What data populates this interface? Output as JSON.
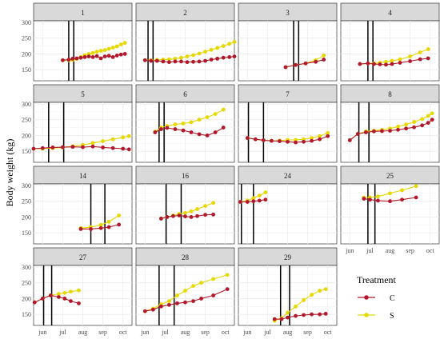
{
  "chart_data": {
    "type": "line",
    "ylabel": "Body weight (kg)",
    "xlabel": "",
    "x_tick_labels": [
      "jun",
      "jul",
      "aug",
      "sep",
      "oct"
    ],
    "x_tick_months": [
      6,
      7,
      8,
      9,
      10
    ],
    "xlim_months": [
      5.55,
      10.45
    ],
    "y_ticks": [
      150,
      200,
      250,
      300
    ],
    "ylim": [
      115,
      305
    ],
    "grid": true,
    "legend": {
      "title": "Treatment",
      "position": "bottom-right",
      "entries": [
        {
          "label": "C",
          "color": "#b2182b"
        },
        {
          "label": "S",
          "color": "#e6d800"
        }
      ]
    },
    "panels": [
      {
        "label": "1",
        "vlines": [
          7.3,
          7.55
        ],
        "C": {
          "x": [
            7.0,
            7.3,
            7.5,
            7.7,
            7.9,
            8.1,
            8.3,
            8.5,
            8.7,
            8.9,
            9.1,
            9.3,
            9.5,
            9.7,
            9.9,
            10.1
          ],
          "y": [
            180,
            182,
            185,
            186,
            188,
            190,
            192,
            190,
            193,
            186,
            192,
            194,
            190,
            195,
            198,
            200
          ]
        },
        "S": {
          "x": [
            7.0,
            7.3,
            7.5,
            7.7,
            7.9,
            8.1,
            8.3,
            8.5,
            8.7,
            8.9,
            9.1,
            9.3,
            9.5,
            9.7,
            9.9,
            10.1
          ],
          "y": [
            180,
            180,
            181,
            184,
            190,
            196,
            200,
            203,
            207,
            210,
            212,
            216,
            220,
            224,
            230,
            235
          ]
        }
      },
      {
        "label": "2",
        "vlines": [
          6.15,
          6.4
        ],
        "C": {
          "x": [
            6.0,
            6.3,
            6.6,
            6.9,
            7.2,
            7.5,
            7.8,
            8.1,
            8.4,
            8.7,
            9.0,
            9.3,
            9.6,
            9.9,
            10.2,
            10.45
          ],
          "y": [
            180,
            178,
            178,
            176,
            174,
            176,
            176,
            174,
            175,
            176,
            178,
            182,
            185,
            188,
            190,
            192
          ]
        },
        "S": {
          "x": [
            6.0,
            6.3,
            6.6,
            6.9,
            7.2,
            7.5,
            7.8,
            8.1,
            8.4,
            8.7,
            9.0,
            9.3,
            9.6,
            9.9,
            10.2,
            10.45
          ],
          "y": [
            180,
            180,
            181,
            182,
            183,
            185,
            188,
            192,
            196,
            201,
            207,
            213,
            219,
            225,
            232,
            238
          ]
        }
      },
      {
        "label": "3",
        "vlines": [
          8.3,
          8.55
        ],
        "C": {
          "x": [
            7.9,
            8.4,
            8.9,
            9.4,
            9.8
          ],
          "y": [
            158,
            165,
            170,
            175,
            182
          ]
        },
        "S": {
          "x": [
            7.9,
            8.4,
            8.9,
            9.4,
            9.8
          ],
          "y": [
            158,
            165,
            170,
            180,
            195
          ]
        }
      },
      {
        "label": "4",
        "vlines": [
          6.9,
          7.15
        ],
        "C": {
          "x": [
            6.5,
            6.9,
            7.2,
            7.5,
            7.8,
            8.1,
            8.5,
            9.0,
            9.5,
            9.9
          ],
          "y": [
            168,
            170,
            168,
            167,
            166,
            168,
            172,
            177,
            183,
            186
          ]
        },
        "S": {
          "x": [
            6.5,
            6.9,
            7.2,
            7.5,
            7.8,
            8.1,
            8.5,
            9.0,
            9.5,
            9.9
          ],
          "y": [
            168,
            170,
            170,
            172,
            175,
            178,
            183,
            192,
            205,
            215
          ]
        }
      },
      {
        "label": "5",
        "vlines": [
          6.3,
          7.05
        ],
        "C": {
          "x": [
            5.55,
            6.0,
            6.5,
            7.0,
            7.5,
            8.0,
            8.5,
            9.0,
            9.5,
            10.0,
            10.3
          ],
          "y": [
            158,
            160,
            162,
            163,
            164,
            163,
            165,
            162,
            160,
            158,
            156
          ]
        },
        "S": {
          "x": [
            5.55,
            6.0,
            6.5,
            7.0,
            7.5,
            8.0,
            8.5,
            9.0,
            9.5,
            10.0,
            10.3
          ],
          "y": [
            158,
            158,
            160,
            162,
            166,
            170,
            176,
            182,
            188,
            194,
            198
          ]
        }
      },
      {
        "label": "6",
        "vlines": [
          6.7,
          6.95
        ],
        "C": {
          "x": [
            6.5,
            6.8,
            7.1,
            7.5,
            7.9,
            8.3,
            8.7,
            9.1,
            9.5,
            9.9
          ],
          "y": [
            210,
            220,
            224,
            220,
            216,
            210,
            204,
            200,
            210,
            225
          ]
        },
        "S": {
          "x": [
            6.5,
            6.8,
            7.1,
            7.5,
            7.9,
            8.3,
            8.7,
            9.1,
            9.5,
            9.9
          ],
          "y": [
            212,
            225,
            230,
            235,
            238,
            242,
            250,
            258,
            268,
            282
          ]
        }
      },
      {
        "label": "7",
        "vlines": [
          6.05,
          6.8
        ],
        "C": {
          "x": [
            6.0,
            6.4,
            6.8,
            7.2,
            7.6,
            8.0,
            8.4,
            8.8,
            9.2,
            9.6,
            10.0
          ],
          "y": [
            192,
            188,
            185,
            183,
            182,
            180,
            178,
            180,
            183,
            188,
            198
          ]
        },
        "S": {
          "x": [
            6.0,
            6.4,
            6.8,
            7.2,
            7.6,
            8.0,
            8.4,
            8.8,
            9.2,
            9.6,
            10.0
          ],
          "y": [
            192,
            188,
            185,
            183,
            184,
            186,
            186,
            188,
            192,
            198,
            208
          ]
        }
      },
      {
        "label": "8",
        "vlines": [
          6.45,
          6.95
        ],
        "C": {
          "x": [
            6.0,
            6.4,
            6.8,
            7.2,
            7.6,
            8.0,
            8.4,
            8.8,
            9.2,
            9.6,
            9.9,
            10.1
          ],
          "y": [
            185,
            205,
            210,
            213,
            214,
            215,
            218,
            222,
            226,
            232,
            240,
            250
          ]
        },
        "S": {
          "x": [
            6.0,
            6.4,
            6.8,
            7.2,
            7.6,
            8.0,
            8.4,
            8.8,
            9.2,
            9.6,
            9.9,
            10.1
          ],
          "y": [
            185,
            205,
            213,
            215,
            218,
            222,
            228,
            235,
            243,
            252,
            262,
            270
          ]
        }
      },
      {
        "label": "14",
        "vlines": [
          8.4,
          9.1
        ],
        "C": {
          "x": [
            7.9,
            8.4,
            8.9,
            9.3,
            9.8
          ],
          "y": [
            162,
            162,
            165,
            168,
            176
          ]
        },
        "S": {
          "x": [
            7.9,
            8.4,
            8.9,
            9.3,
            9.8
          ],
          "y": [
            165,
            168,
            175,
            185,
            205
          ]
        }
      },
      {
        "label": "16",
        "vlines": [
          7.05,
          7.8
        ],
        "C": {
          "x": [
            6.8,
            7.1,
            7.4,
            7.7,
            8.0,
            8.3,
            8.6,
            9.0,
            9.4
          ],
          "y": [
            195,
            200,
            203,
            205,
            202,
            200,
            203,
            207,
            208
          ]
        },
        "S": {
          "x": [
            6.8,
            7.1,
            7.4,
            7.7,
            8.0,
            8.3,
            8.6,
            9.0,
            9.4
          ],
          "y": [
            195,
            200,
            205,
            210,
            213,
            218,
            225,
            235,
            245
          ]
        }
      },
      {
        "label": "24",
        "vlines": [
          5.7,
          6.3
        ],
        "C": {
          "x": [
            5.65,
            6.0,
            6.3,
            6.6,
            6.9
          ],
          "y": [
            248,
            248,
            250,
            252,
            255
          ]
        },
        "S": {
          "x": [
            5.65,
            6.0,
            6.3,
            6.6,
            6.9
          ],
          "y": [
            248,
            252,
            260,
            268,
            278
          ]
        }
      },
      {
        "label": "25",
        "vlines": [
          6.9,
          7.25
        ],
        "C": {
          "x": [
            6.7,
            7.0,
            7.4,
            8.0,
            8.6,
            9.3
          ],
          "y": [
            258,
            255,
            252,
            250,
            255,
            262
          ]
        },
        "S": {
          "x": [
            6.7,
            7.0,
            7.4,
            8.0,
            8.6,
            9.3
          ],
          "y": [
            262,
            262,
            265,
            275,
            285,
            298
          ]
        }
      },
      {
        "label": "27",
        "vlines": [
          6.05,
          6.45
        ],
        "C": {
          "x": [
            5.6,
            6.0,
            6.4,
            6.8,
            7.1,
            7.4,
            7.8
          ],
          "y": [
            188,
            200,
            210,
            205,
            200,
            192,
            185
          ]
        },
        "S": {
          "x": [
            5.6,
            6.0,
            6.4,
            6.8,
            7.1,
            7.4,
            7.8
          ],
          "y": [
            188,
            200,
            210,
            215,
            218,
            222,
            226
          ]
        }
      },
      {
        "label": "28",
        "vlines": [
          6.7,
          7.45
        ],
        "C": {
          "x": [
            6.0,
            6.4,
            6.8,
            7.2,
            7.6,
            8.0,
            8.4,
            8.8,
            9.4,
            10.1
          ],
          "y": [
            160,
            165,
            175,
            180,
            185,
            188,
            192,
            200,
            210,
            230
          ]
        },
        "S": {
          "x": [
            6.0,
            6.4,
            6.8,
            7.2,
            7.6,
            8.0,
            8.4,
            8.8,
            9.4,
            10.1
          ],
          "y": [
            160,
            168,
            182,
            192,
            210,
            225,
            240,
            250,
            262,
            275
          ]
        }
      },
      {
        "label": "29",
        "vlines": [
          7.65,
          8.1
        ],
        "C": {
          "x": [
            7.35,
            7.7,
            8.0,
            8.4,
            8.8,
            9.2,
            9.6,
            9.9
          ],
          "y": [
            135,
            135,
            140,
            145,
            148,
            150,
            150,
            152
          ]
        },
        "S": {
          "x": [
            7.35,
            7.7,
            8.0,
            8.4,
            8.8,
            9.2,
            9.6,
            9.9
          ],
          "y": [
            130,
            138,
            155,
            175,
            195,
            212,
            225,
            230
          ]
        }
      }
    ]
  }
}
